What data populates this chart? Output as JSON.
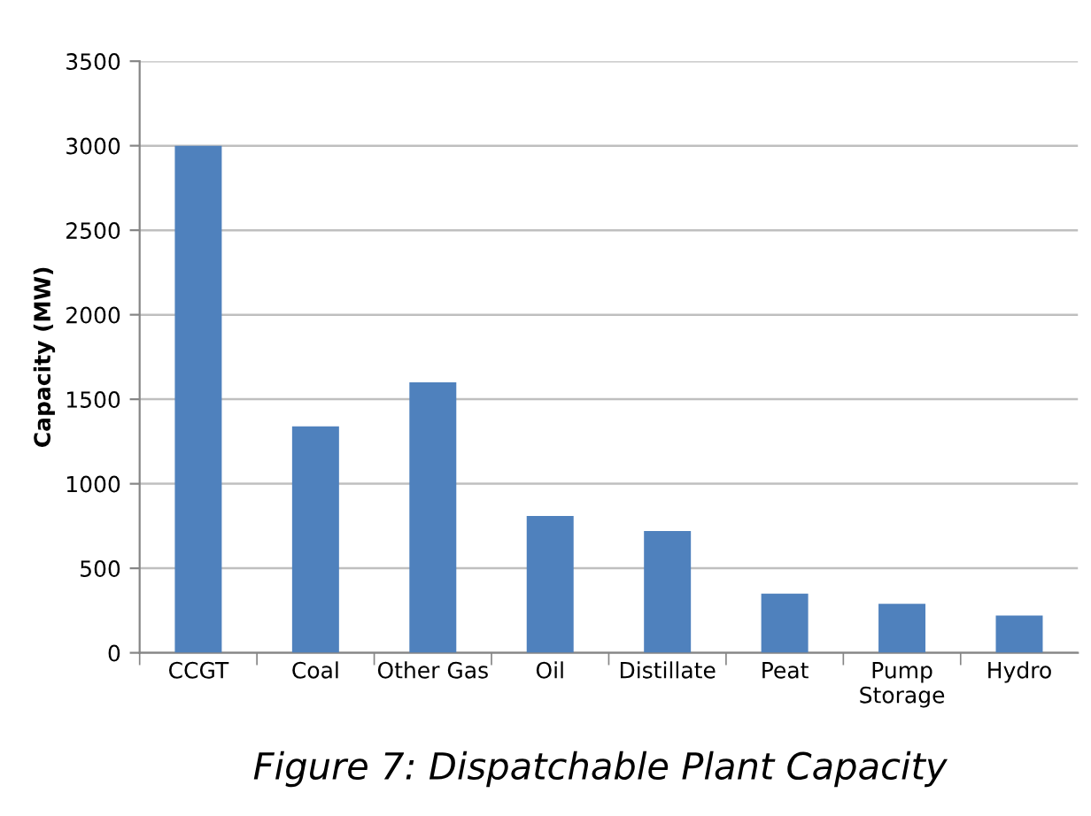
{
  "chart_data": {
    "type": "bar",
    "title": "Figure 7: Dispatchable Plant Capacity",
    "ylabel": "Capacity (MW)",
    "categories": [
      "CCGT",
      "Coal",
      "Other Gas",
      "Oil",
      "Distillate",
      "Peat",
      "Pump\nStorage",
      "Hydro"
    ],
    "values": [
      3000,
      1340,
      1600,
      810,
      720,
      350,
      290,
      220
    ],
    "color": "#4f81bd",
    "ylim": [
      0,
      3500
    ],
    "yticks": [
      0,
      500,
      1000,
      1500,
      2000,
      2500,
      3000,
      3500
    ],
    "grid": "y",
    "legend": false
  }
}
